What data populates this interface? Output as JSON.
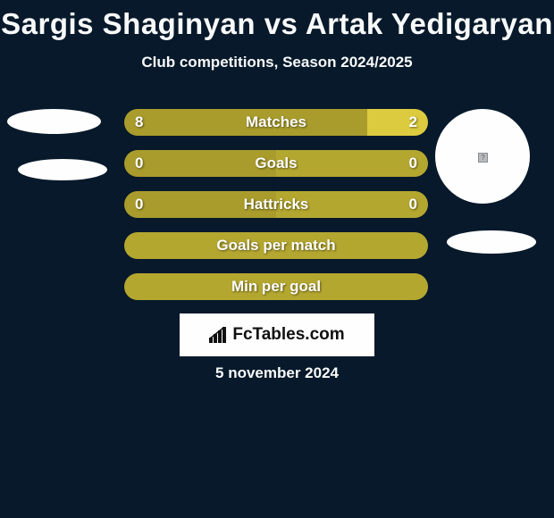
{
  "header": {
    "title": "Sargis Shaginyan vs Artak Yedigaryan",
    "subtitle": "Club competitions, Season 2024/2025"
  },
  "colors": {
    "background": "#07192a",
    "text": "#f8fafa",
    "bar_primary": "#a99c2c",
    "bar_secondary": "#b4a730",
    "bar_light": "#dccb3e",
    "white": "#fefefe"
  },
  "bars": [
    {
      "label": "Matches",
      "left": "8",
      "right": "2",
      "left_pct": 80,
      "right_pct": 20,
      "left_color": "#a99c2c",
      "right_color": "#dccb3e",
      "show_vals": true
    },
    {
      "label": "Goals",
      "left": "0",
      "right": "0",
      "left_pct": 50,
      "right_pct": 50,
      "left_color": "#a99c2c",
      "right_color": "#b4a730",
      "show_vals": true
    },
    {
      "label": "Hattricks",
      "left": "0",
      "right": "0",
      "left_pct": 50,
      "right_pct": 50,
      "left_color": "#a99c2c",
      "right_color": "#b4a730",
      "show_vals": true
    },
    {
      "label": "Goals per match",
      "left": "",
      "right": "",
      "left_pct": 100,
      "right_pct": 0,
      "left_color": "#b4a730",
      "right_color": "#b4a730",
      "show_vals": false
    },
    {
      "label": "Min per goal",
      "left": "",
      "right": "",
      "left_pct": 100,
      "right_pct": 0,
      "left_color": "#b4a730",
      "right_color": "#b4a730",
      "show_vals": false
    }
  ],
  "logo": {
    "text": "FcTables.com"
  },
  "footer": {
    "date": "5 november 2024"
  }
}
